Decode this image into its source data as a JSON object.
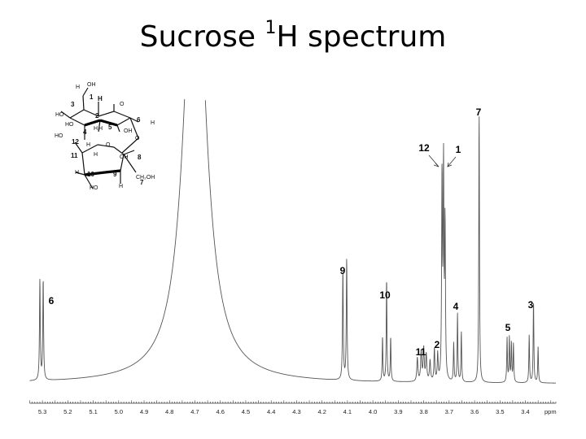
{
  "title": {
    "prefix": "Sucrose ",
    "sup": "1",
    "suffix": "H spectrum"
  },
  "chart_data": {
    "type": "line",
    "title": "Sucrose 1H spectrum",
    "xlabel": "ppm",
    "ylabel": "",
    "xlim": [
      5.35,
      3.28
    ],
    "x_reversed": true,
    "ticks": [
      "5.3",
      "5.2",
      "5.1",
      "5.0",
      "4.9",
      "4.8",
      "4.7",
      "4.6",
      "4.5",
      "4.4",
      "4.3",
      "4.2",
      "4.1",
      "4.0",
      "3.9",
      "3.8",
      "3.7",
      "3.6",
      "3.5",
      "3.4"
    ],
    "peaks": [
      {
        "ppm": 5.31,
        "height": 0.34,
        "w": 0.0018
      },
      {
        "ppm": 5.297,
        "height": 0.34,
        "w": 0.0018
      },
      {
        "ppm": 4.7,
        "height": 1.6,
        "w": 0.05
      },
      {
        "ppm": 4.118,
        "height": 0.37,
        "w": 0.0018
      },
      {
        "ppm": 4.103,
        "height": 0.41,
        "w": 0.0018
      },
      {
        "ppm": 3.962,
        "height": 0.15,
        "w": 0.0016
      },
      {
        "ppm": 3.946,
        "height": 0.35,
        "w": 0.0016
      },
      {
        "ppm": 3.93,
        "height": 0.15,
        "w": 0.0016
      },
      {
        "ppm": 3.825,
        "height": 0.08,
        "w": 0.0025
      },
      {
        "ppm": 3.81,
        "height": 0.1,
        "w": 0.0025
      },
      {
        "ppm": 3.8,
        "height": 0.11,
        "w": 0.0025
      },
      {
        "ppm": 3.79,
        "height": 0.09,
        "w": 0.0025
      },
      {
        "ppm": 3.775,
        "height": 0.07,
        "w": 0.0025
      },
      {
        "ppm": 3.758,
        "height": 0.11,
        "w": 0.002
      },
      {
        "ppm": 3.745,
        "height": 0.09,
        "w": 0.002
      },
      {
        "ppm": 3.728,
        "height": 0.68,
        "w": 0.0018
      },
      {
        "ppm": 3.722,
        "height": 0.71,
        "w": 0.0018
      },
      {
        "ppm": 3.716,
        "height": 0.52,
        "w": 0.0018
      },
      {
        "ppm": 3.682,
        "height": 0.13,
        "w": 0.0016
      },
      {
        "ppm": 3.667,
        "height": 0.23,
        "w": 0.0016
      },
      {
        "ppm": 3.652,
        "height": 0.17,
        "w": 0.0016
      },
      {
        "ppm": 3.582,
        "height": 0.92,
        "w": 0.0016
      },
      {
        "ppm": 3.472,
        "height": 0.15,
        "w": 0.0016
      },
      {
        "ppm": 3.463,
        "height": 0.15,
        "w": 0.0016
      },
      {
        "ppm": 3.455,
        "height": 0.13,
        "w": 0.0016
      },
      {
        "ppm": 3.447,
        "height": 0.13,
        "w": 0.0016
      },
      {
        "ppm": 3.385,
        "height": 0.16,
        "w": 0.0016
      },
      {
        "ppm": 3.368,
        "height": 0.28,
        "w": 0.0016
      },
      {
        "ppm": 3.35,
        "height": 0.12,
        "w": 0.0016
      }
    ],
    "annotations": [
      {
        "label": "6",
        "ppm": 5.305
      },
      {
        "label": "9",
        "ppm": 4.11
      },
      {
        "label": "10",
        "ppm": 3.946
      },
      {
        "label": "11",
        "ppm": 3.8
      },
      {
        "label": "2",
        "ppm": 3.752
      },
      {
        "label": "12",
        "ppm": 3.8
      },
      {
        "label": "1",
        "ppm": 3.69
      },
      {
        "label": "4",
        "ppm": 3.665
      },
      {
        "label": "7",
        "ppm": 3.582
      },
      {
        "label": "5",
        "ppm": 3.46
      },
      {
        "label": "3",
        "ppm": 3.368
      }
    ],
    "grid": false,
    "legend": "none"
  },
  "molecule": {
    "texts": [
      "H",
      "OH",
      "3",
      "H",
      "O",
      "HO",
      "1",
      "2",
      "H",
      "HO",
      "4",
      "H",
      "5",
      "OH",
      "6",
      "H",
      "12",
      "HO",
      "H",
      "O",
      "O",
      "11",
      "H",
      "OH",
      "8",
      "H",
      "10",
      "9",
      "HO",
      "H",
      "CH₂OH",
      "7"
    ]
  }
}
